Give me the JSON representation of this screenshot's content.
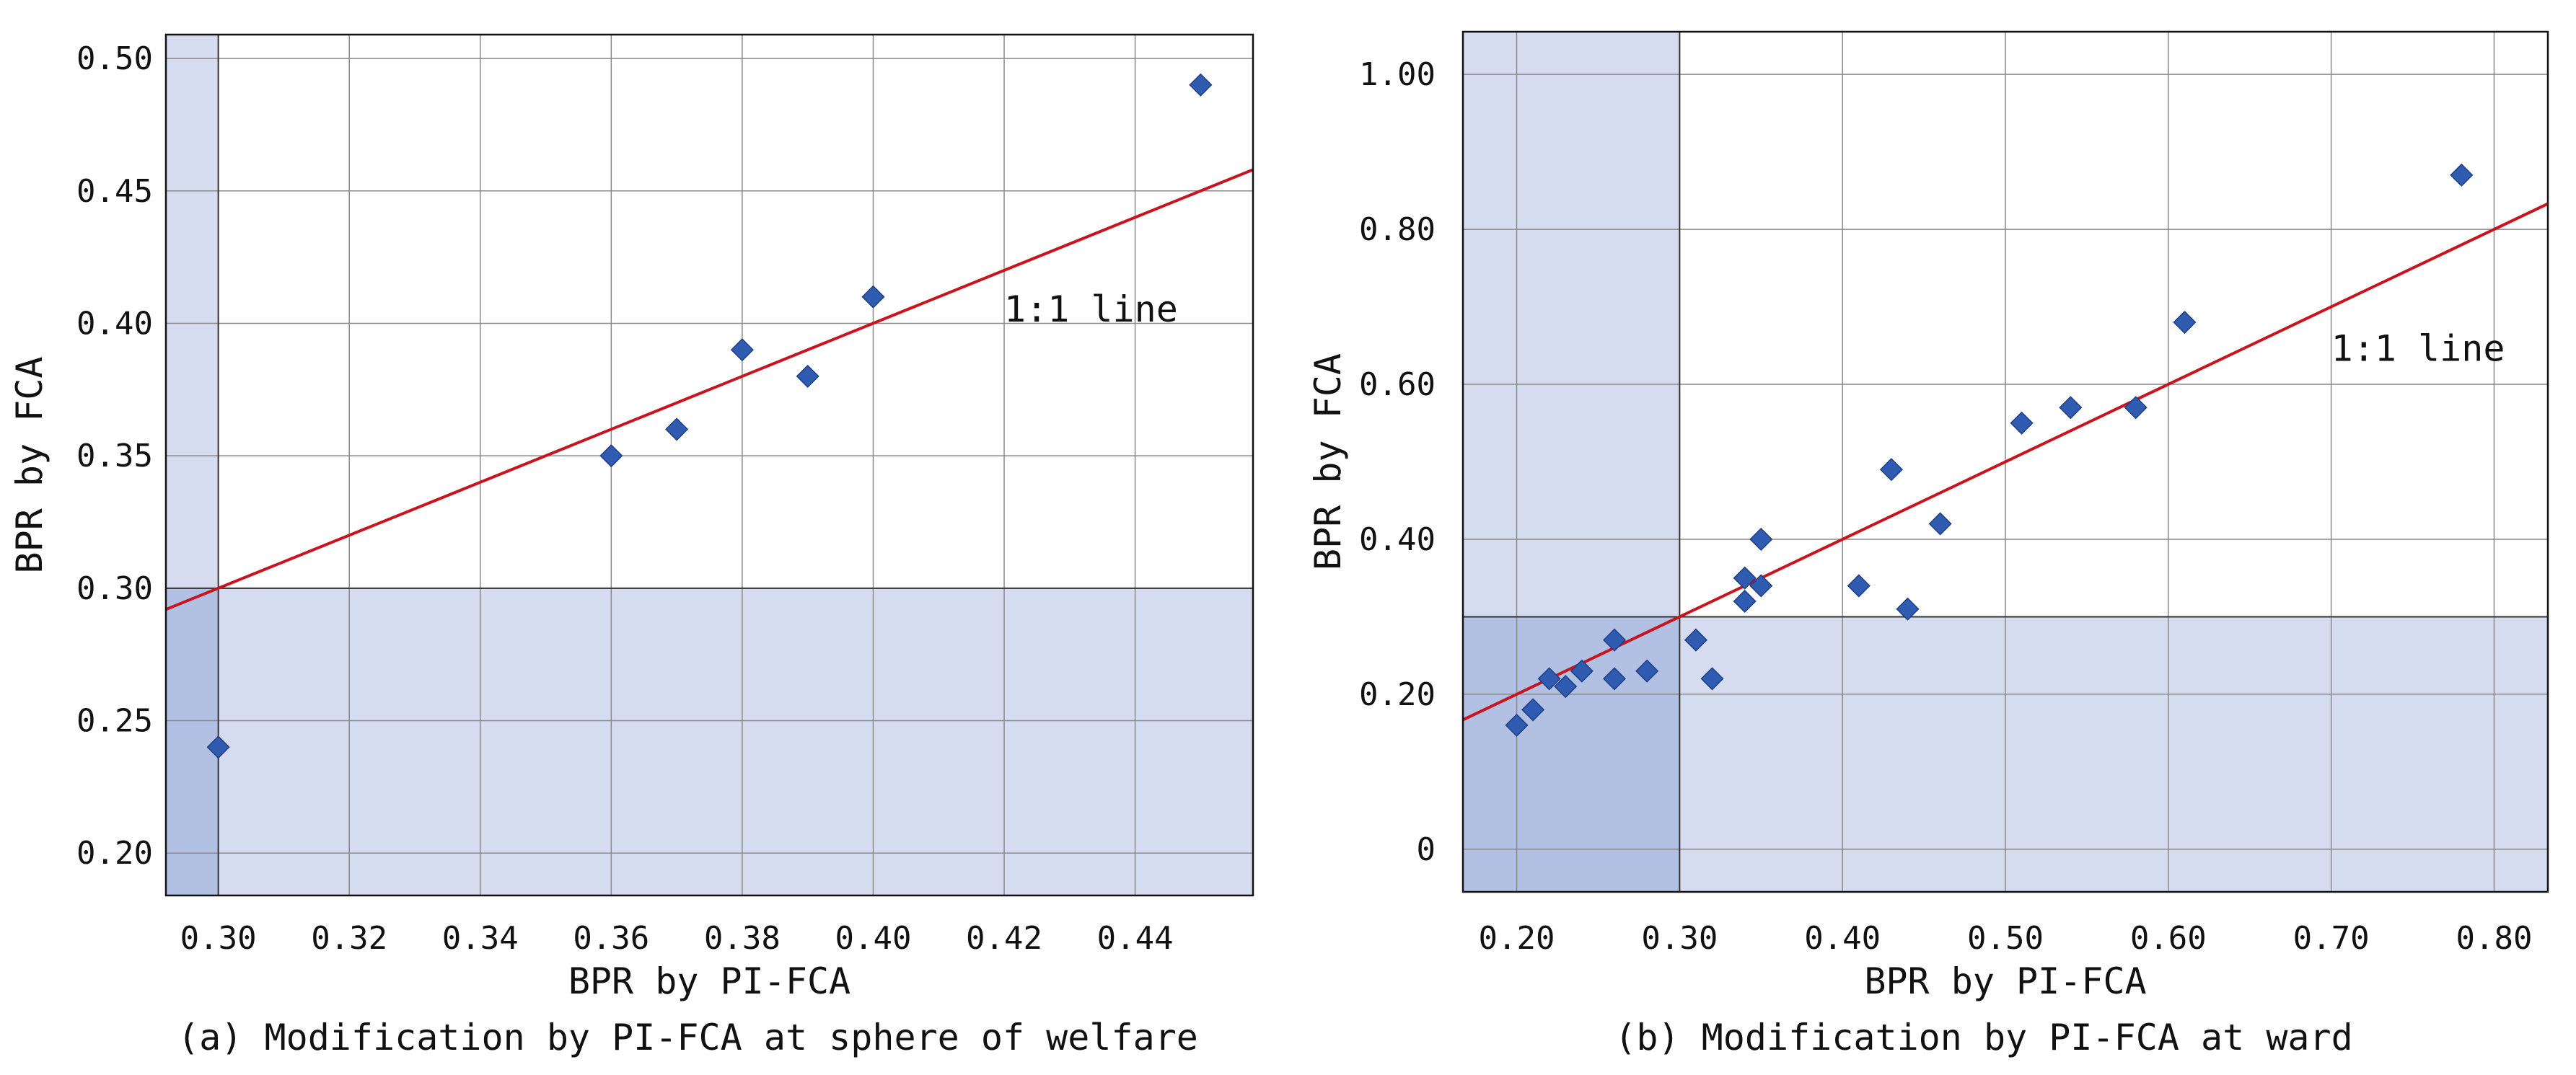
{
  "chart_data": [
    {
      "type": "scatter",
      "panel": "a",
      "caption": "(a) Modification by PI-FCA at sphere of welfare",
      "xlabel": "BPR by PI-FCA",
      "ylabel": "BPR by FCA",
      "xlim": [
        0.292,
        0.458
      ],
      "ylim": [
        0.184,
        0.509
      ],
      "xticks": [
        0.3,
        0.32,
        0.34,
        0.36,
        0.38,
        0.4,
        0.42,
        0.44
      ],
      "xtick_labels": [
        "0.30",
        "0.32",
        "0.34",
        "0.36",
        "0.38",
        "0.40",
        "0.42",
        "0.44"
      ],
      "yticks": [
        0.2,
        0.25,
        0.3,
        0.35,
        0.4,
        0.45,
        0.5
      ],
      "ytick_labels": [
        "0.20",
        "0.25",
        "0.30",
        "0.35",
        "0.40",
        "0.45",
        "0.50"
      ],
      "grid": true,
      "threshold": 0.3,
      "reference_line": {
        "label": "1:1 line",
        "slope": 1,
        "intercept": 0,
        "label_at": [
          0.42,
          0.405
        ]
      },
      "points": [
        {
          "x": 0.3,
          "y": 0.24
        },
        {
          "x": 0.36,
          "y": 0.35
        },
        {
          "x": 0.37,
          "y": 0.36
        },
        {
          "x": 0.38,
          "y": 0.39
        },
        {
          "x": 0.39,
          "y": 0.38
        },
        {
          "x": 0.4,
          "y": 0.41
        },
        {
          "x": 0.45,
          "y": 0.49
        }
      ]
    },
    {
      "type": "scatter",
      "panel": "b",
      "caption": "(b) Modification by PI-FCA at ward",
      "xlabel": "BPR by PI-FCA",
      "ylabel": "BPR by FCA",
      "xlim": [
        0.167,
        0.833
      ],
      "ylim": [
        -0.055,
        1.055
      ],
      "xticks": [
        0.2,
        0.3,
        0.4,
        0.5,
        0.6,
        0.7,
        0.8
      ],
      "xtick_labels": [
        "0.20",
        "0.30",
        "0.40",
        "0.50",
        "0.60",
        "0.70",
        "0.80"
      ],
      "yticks": [
        0.0,
        0.2,
        0.4,
        0.6,
        0.8,
        1.0
      ],
      "ytick_labels": [
        "0",
        "0.20",
        "0.40",
        "0.60",
        "0.80",
        "1.00"
      ],
      "grid": true,
      "threshold": 0.3,
      "reference_line": {
        "label": "1:1 line",
        "slope": 1,
        "intercept": 0,
        "label_at": [
          0.7,
          0.645
        ]
      },
      "points": [
        {
          "x": 0.2,
          "y": 0.16
        },
        {
          "x": 0.21,
          "y": 0.18
        },
        {
          "x": 0.22,
          "y": 0.22
        },
        {
          "x": 0.23,
          "y": 0.21
        },
        {
          "x": 0.24,
          "y": 0.23
        },
        {
          "x": 0.26,
          "y": 0.27
        },
        {
          "x": 0.26,
          "y": 0.22
        },
        {
          "x": 0.28,
          "y": 0.23
        },
        {
          "x": 0.31,
          "y": 0.27
        },
        {
          "x": 0.32,
          "y": 0.22
        },
        {
          "x": 0.34,
          "y": 0.35
        },
        {
          "x": 0.34,
          "y": 0.32
        },
        {
          "x": 0.35,
          "y": 0.4
        },
        {
          "x": 0.35,
          "y": 0.34
        },
        {
          "x": 0.41,
          "y": 0.34
        },
        {
          "x": 0.43,
          "y": 0.49
        },
        {
          "x": 0.44,
          "y": 0.31
        },
        {
          "x": 0.46,
          "y": 0.42
        },
        {
          "x": 0.51,
          "y": 0.55
        },
        {
          "x": 0.54,
          "y": 0.57
        },
        {
          "x": 0.58,
          "y": 0.57
        },
        {
          "x": 0.61,
          "y": 0.68
        },
        {
          "x": 0.78,
          "y": 0.87
        }
      ]
    }
  ],
  "colors": {
    "marker": "#2f5bb0",
    "marker_edge": "#1f3f86",
    "reference_line": "#c8141e",
    "shade_light": "#d6dcef",
    "shade_dark": "#b2c1e3",
    "grid": "#8a8a8a"
  }
}
